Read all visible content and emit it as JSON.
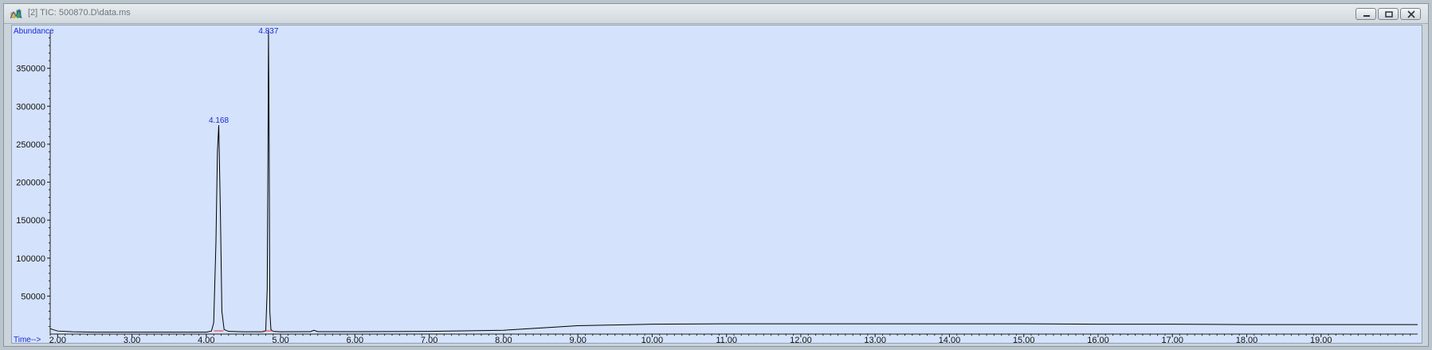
{
  "window": {
    "title": "[2] TIC: 500870.D\\data.ms"
  },
  "colors": {
    "plot_background": "#d4e2fc",
    "trace": "#000000",
    "label_blue": "#1a2bd0",
    "baseline_marker": "#e03030"
  },
  "icons": [
    "chromatogram-app-icon",
    "minimize-icon",
    "restore-icon",
    "close-icon"
  ],
  "chart_data": {
    "type": "line",
    "ylabel": "Abundance",
    "xlabel": "Time-->",
    "xlim": [
      1.9,
      20.3
    ],
    "ylim": [
      0,
      400000
    ],
    "x_ticks": [
      "2.00",
      "3.00",
      "4.00",
      "5.00",
      "6.00",
      "7.00",
      "8.00",
      "9.00",
      "10.00",
      "11.00",
      "12.00",
      "13.00",
      "14.00",
      "15.00",
      "16.00",
      "17.00",
      "18.00",
      "19.00"
    ],
    "y_ticks": [
      "50000",
      "100000",
      "150000",
      "200000",
      "250000",
      "300000",
      "350000"
    ],
    "grid": false,
    "peaks": [
      {
        "label": "4.168",
        "x": 4.168,
        "y": 275000
      },
      {
        "label": "4.837",
        "x": 4.837,
        "y": 400000
      }
    ],
    "series": [
      {
        "x": [
          1.9,
          2.0,
          2.2,
          2.5,
          3.0,
          3.5,
          4.0,
          4.07,
          4.1,
          4.13,
          4.15,
          4.168,
          4.19,
          4.21,
          4.24,
          4.3,
          4.5,
          4.75,
          4.8,
          4.82,
          4.83,
          4.837,
          4.845,
          4.855,
          4.87,
          4.9,
          5.0,
          5.4,
          5.45,
          5.5,
          6.0,
          7.0,
          8.0,
          8.5,
          9.0,
          9.5,
          10.0,
          11.0,
          12.0,
          13.0,
          14.0,
          15.0,
          16.0,
          17.0,
          18.0,
          19.0,
          20.0,
          20.3
        ],
        "y": [
          7000,
          4000,
          3000,
          2500,
          2500,
          2500,
          2500,
          4000,
          15000,
          120000,
          240000,
          275000,
          160000,
          30000,
          6000,
          3500,
          3000,
          3000,
          4000,
          60000,
          230000,
          400000,
          280000,
          30000,
          6000,
          3500,
          3000,
          3200,
          5000,
          3200,
          3200,
          3500,
          5000,
          8000,
          11000,
          12000,
          13000,
          13500,
          13500,
          13500,
          13500,
          13500,
          13000,
          13000,
          12500,
          12500,
          12500,
          12500
        ]
      }
    ]
  }
}
